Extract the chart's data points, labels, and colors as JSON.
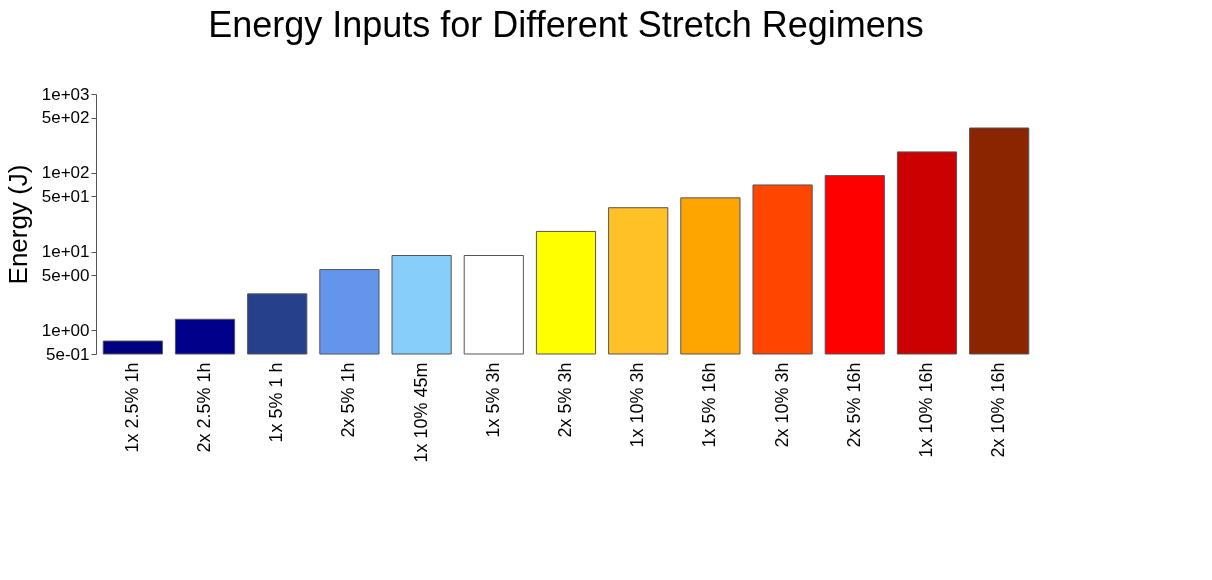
{
  "chart_data": {
    "type": "bar",
    "title": "Energy Inputs for Different Stretch Regimens",
    "ylabel": "Energy (J)",
    "categories": [
      "1x 2.5% 1h",
      "2x 2.5% 1h",
      "1x 5% 1 h",
      "2x 5% 1h",
      "1x 10% 45m",
      "1x 5% 3h",
      "2x 5% 3h",
      "1x 10% 3h",
      "1x 5% 16h",
      "2x 10% 3h",
      "2x 5% 16h",
      "1x 10% 16h",
      "2x 10% 16h"
    ],
    "values": [
      0.73,
      1.38,
      2.9,
      5.9,
      8.9,
      8.9,
      18,
      36,
      48,
      70,
      92,
      184,
      370
    ],
    "colors": [
      "#000080",
      "#00008b",
      "#27408b",
      "#6495ed",
      "#87cefa",
      "#ffffff",
      "#ffff00",
      "#ffc125",
      "#ffa500",
      "#ff4500",
      "#ff0000",
      "#cd0000",
      "#8b2500"
    ],
    "log": true,
    "ylim": [
      0.5,
      1000
    ],
    "yticks": [
      {
        "value": 0.5,
        "label": "5e-01"
      },
      {
        "value": 1,
        "label": "1e+00"
      },
      {
        "value": 5,
        "label": "5e+00"
      },
      {
        "value": 10,
        "label": "1e+01"
      },
      {
        "value": 50,
        "label": "5e+01"
      },
      {
        "value": 100,
        "label": "1e+02"
      },
      {
        "value": 500,
        "label": "5e+02"
      },
      {
        "value": 1000,
        "label": "1e+03"
      }
    ],
    "grid": false
  }
}
